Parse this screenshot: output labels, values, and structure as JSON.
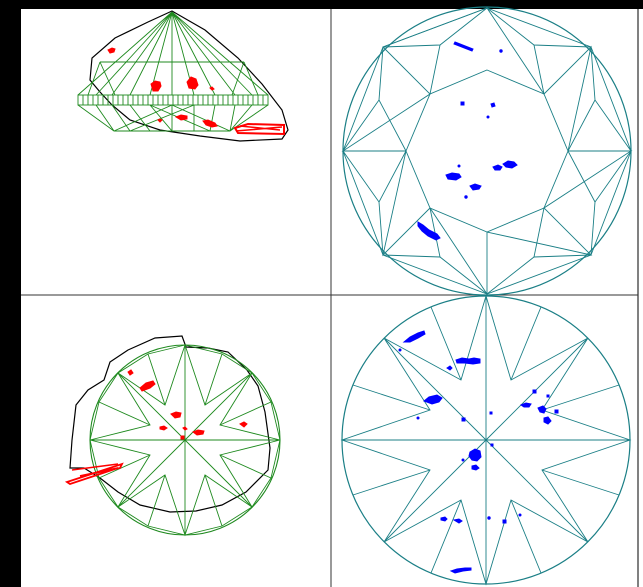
{
  "colors": {
    "frame": "#000000",
    "divider": "#222222",
    "side_view_facets": "#1f8a1f",
    "table_view_facets": "#1b7f86",
    "outline": "#000000",
    "inclusion_side": "#ff0000",
    "inclusion_table": "#0000ff",
    "background": "#ffffff"
  },
  "panels": [
    {
      "id": "crown-side-view",
      "label": ""
    },
    {
      "id": "table-facet-diagram",
      "label": ""
    },
    {
      "id": "pavilion-bottom-view",
      "label": ""
    },
    {
      "id": "pavilion-facet-diagram",
      "label": ""
    }
  ]
}
